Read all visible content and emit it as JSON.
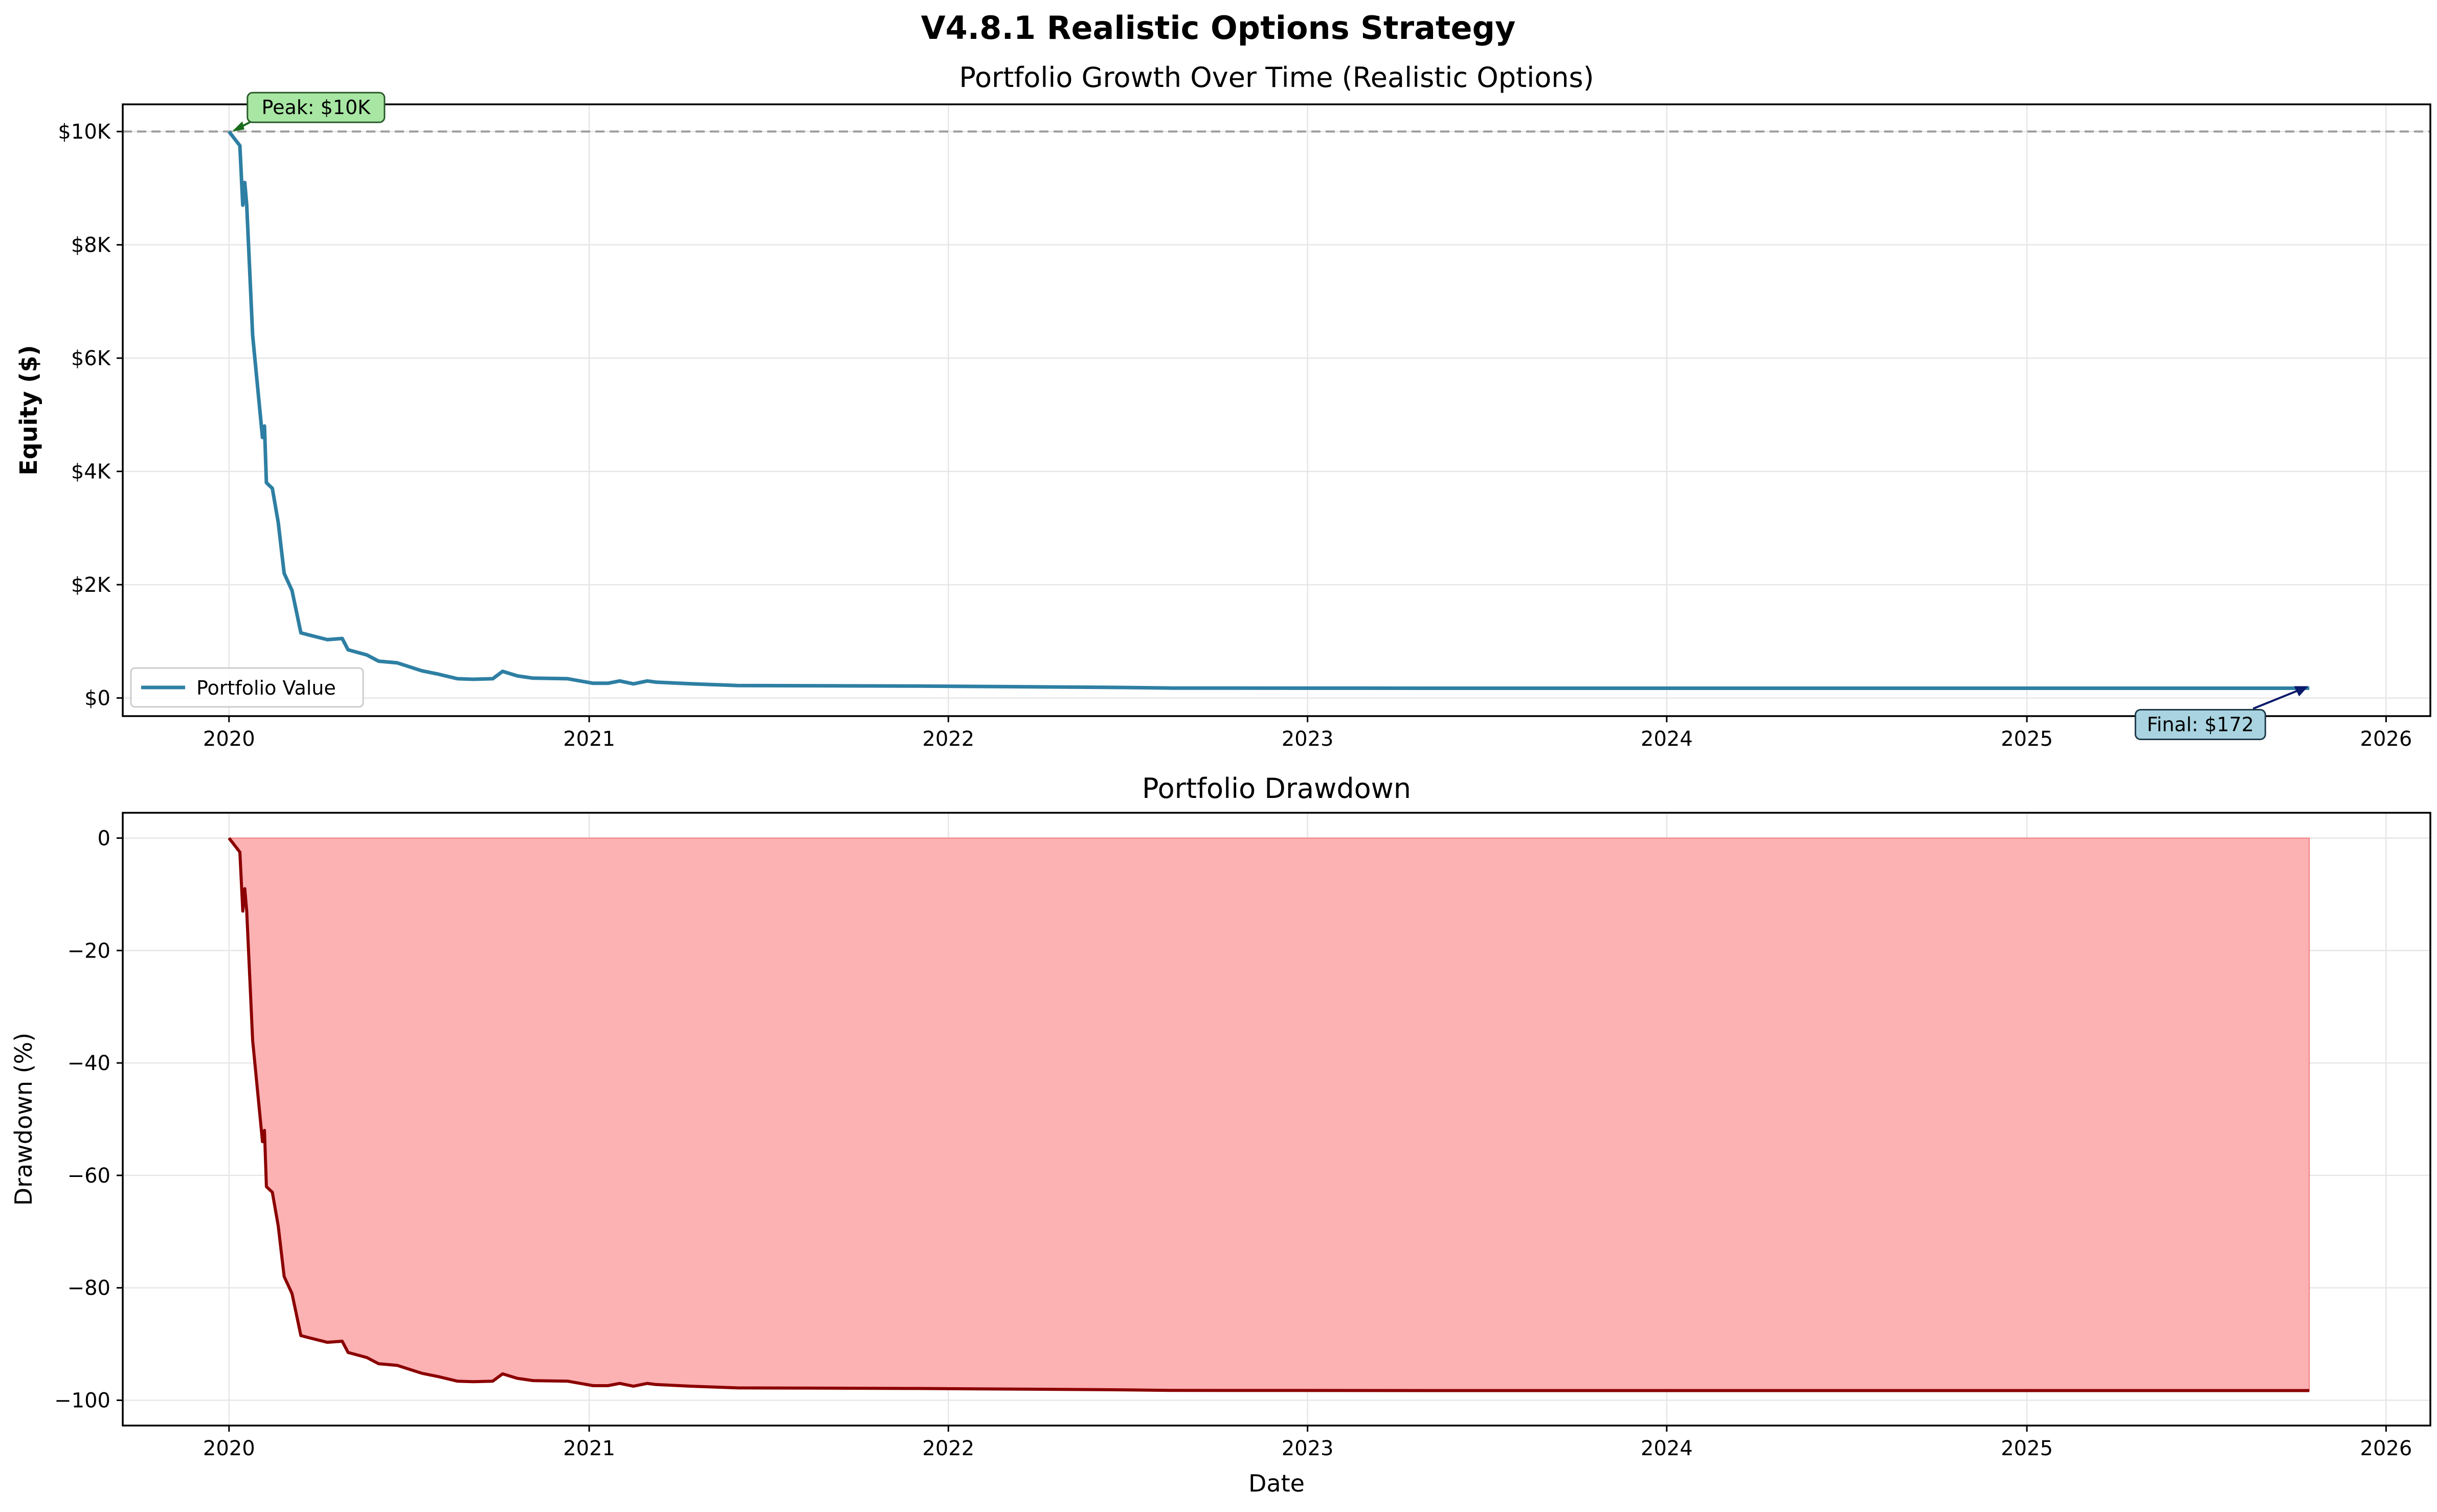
{
  "figure": {
    "title": "V4.8.1 Realistic Options Strategy"
  },
  "chart_data": [
    {
      "type": "line",
      "title": "Portfolio Growth Over Time (Realistic Options)",
      "xlabel": "",
      "ylabel": "Equity ($)",
      "x_ticks": [
        "2020",
        "2021",
        "2022",
        "2023",
        "2024",
        "2025",
        "2026"
      ],
      "y_ticks": [
        {
          "value": 0,
          "label": "$0"
        },
        {
          "value": 2000,
          "label": "$2K"
        },
        {
          "value": 4000,
          "label": "$4K"
        },
        {
          "value": 6000,
          "label": "$6K"
        },
        {
          "value": 8000,
          "label": "$8K"
        },
        {
          "value": 10000,
          "label": "$10K"
        }
      ],
      "xlim": [
        "2019-09-15",
        "2026-02-15"
      ],
      "ylim": [
        -320,
        10480
      ],
      "grid": true,
      "legend": {
        "placement": "lower-left",
        "entries": [
          "Portfolio Value"
        ]
      },
      "reference_line": {
        "y": 10000,
        "style": "dashed",
        "color": "#9e9e9e"
      },
      "annotations": [
        {
          "text": "Peak: $10K",
          "x": "2020-01-01",
          "y": 10000,
          "color": "#a8e6a3"
        },
        {
          "text": "Final: $172",
          "x": "2025-10-15",
          "y": 172,
          "color": "#a9d3e0"
        }
      ],
      "series": [
        {
          "name": "Portfolio Value",
          "color": "#2e7fa3",
          "points": [
            [
              "2020-01-01",
              10000
            ],
            [
              "2020-01-12",
              9750
            ],
            [
              "2020-01-15",
              8700
            ],
            [
              "2020-01-17",
              9100
            ],
            [
              "2020-01-19",
              8700
            ],
            [
              "2020-01-25",
              6400
            ],
            [
              "2020-01-30",
              5500
            ],
            [
              "2020-02-04",
              4600
            ],
            [
              "2020-02-06",
              4800
            ],
            [
              "2020-02-08",
              3800
            ],
            [
              "2020-02-14",
              3700
            ],
            [
              "2020-02-20",
              3100
            ],
            [
              "2020-02-26",
              2200
            ],
            [
              "2020-03-05",
              1900
            ],
            [
              "2020-03-14",
              1150
            ],
            [
              "2020-03-25",
              1100
            ],
            [
              "2020-04-10",
              1030
            ],
            [
              "2020-04-25",
              1050
            ],
            [
              "2020-05-01",
              850
            ],
            [
              "2020-05-20",
              760
            ],
            [
              "2020-06-01",
              650
            ],
            [
              "2020-06-20",
              620
            ],
            [
              "2020-07-15",
              480
            ],
            [
              "2020-08-01",
              420
            ],
            [
              "2020-08-20",
              340
            ],
            [
              "2020-09-05",
              330
            ],
            [
              "2020-09-25",
              340
            ],
            [
              "2020-10-05",
              470
            ],
            [
              "2020-10-20",
              390
            ],
            [
              "2020-11-05",
              350
            ],
            [
              "2020-12-10",
              340
            ],
            [
              "2021-01-05",
              260
            ],
            [
              "2021-01-20",
              260
            ],
            [
              "2021-02-01",
              300
            ],
            [
              "2021-02-15",
              250
            ],
            [
              "2021-03-01",
              300
            ],
            [
              "2021-03-10",
              280
            ],
            [
              "2021-04-15",
              250
            ],
            [
              "2021-06-01",
              220
            ],
            [
              "2021-09-01",
              215
            ],
            [
              "2021-12-01",
              210
            ],
            [
              "2022-03-01",
              200
            ],
            [
              "2022-07-01",
              185
            ],
            [
              "2022-08-15",
              175
            ],
            [
              "2023-06-01",
              172
            ],
            [
              "2024-06-01",
              172
            ],
            [
              "2025-10-15",
              172
            ]
          ]
        }
      ]
    },
    {
      "type": "area",
      "title": "Portfolio Drawdown",
      "xlabel": "Date",
      "ylabel": "Drawdown (%)",
      "x_ticks": [
        "2020",
        "2021",
        "2022",
        "2023",
        "2024",
        "2025",
        "2026"
      ],
      "y_ticks": [
        {
          "value": 0,
          "label": "0"
        },
        {
          "value": -20,
          "label": "−20"
        },
        {
          "value": -40,
          "label": "−40"
        },
        {
          "value": -60,
          "label": "−60"
        },
        {
          "value": -80,
          "label": "−80"
        },
        {
          "value": -100,
          "label": "−100"
        }
      ],
      "xlim": [
        "2019-09-15",
        "2026-02-15"
      ],
      "ylim": [
        -104.5,
        4.5
      ],
      "grid": true,
      "series": [
        {
          "name": "",
          "line_color": "#8b0000",
          "fill_color": "#fcb1b3",
          "points": [
            [
              "2020-01-01",
              0
            ],
            [
              "2020-01-12",
              -2.5
            ],
            [
              "2020-01-15",
              -13
            ],
            [
              "2020-01-17",
              -9
            ],
            [
              "2020-01-19",
              -13
            ],
            [
              "2020-01-25",
              -36
            ],
            [
              "2020-01-30",
              -45
            ],
            [
              "2020-02-04",
              -54
            ],
            [
              "2020-02-06",
              -52
            ],
            [
              "2020-02-08",
              -62
            ],
            [
              "2020-02-14",
              -63
            ],
            [
              "2020-02-20",
              -69
            ],
            [
              "2020-02-26",
              -78
            ],
            [
              "2020-03-05",
              -81
            ],
            [
              "2020-03-14",
              -88.5
            ],
            [
              "2020-03-25",
              -89
            ],
            [
              "2020-04-10",
              -89.7
            ],
            [
              "2020-04-25",
              -89.5
            ],
            [
              "2020-05-01",
              -91.5
            ],
            [
              "2020-05-20",
              -92.4
            ],
            [
              "2020-06-01",
              -93.5
            ],
            [
              "2020-06-20",
              -93.8
            ],
            [
              "2020-07-15",
              -95.2
            ],
            [
              "2020-08-01",
              -95.8
            ],
            [
              "2020-08-20",
              -96.6
            ],
            [
              "2020-09-05",
              -96.7
            ],
            [
              "2020-09-25",
              -96.6
            ],
            [
              "2020-10-05",
              -95.3
            ],
            [
              "2020-10-20",
              -96.1
            ],
            [
              "2020-11-05",
              -96.5
            ],
            [
              "2020-12-10",
              -96.6
            ],
            [
              "2021-01-05",
              -97.4
            ],
            [
              "2021-01-20",
              -97.4
            ],
            [
              "2021-02-01",
              -97.0
            ],
            [
              "2021-02-15",
              -97.5
            ],
            [
              "2021-03-01",
              -97.0
            ],
            [
              "2021-03-10",
              -97.2
            ],
            [
              "2021-04-15",
              -97.5
            ],
            [
              "2021-06-01",
              -97.8
            ],
            [
              "2021-09-01",
              -97.85
            ],
            [
              "2021-12-01",
              -97.9
            ],
            [
              "2022-03-01",
              -98.0
            ],
            [
              "2022-07-01",
              -98.15
            ],
            [
              "2022-08-15",
              -98.25
            ],
            [
              "2023-06-01",
              -98.28
            ],
            [
              "2024-06-01",
              -98.28
            ],
            [
              "2025-10-15",
              -98.28
            ]
          ]
        }
      ]
    }
  ]
}
